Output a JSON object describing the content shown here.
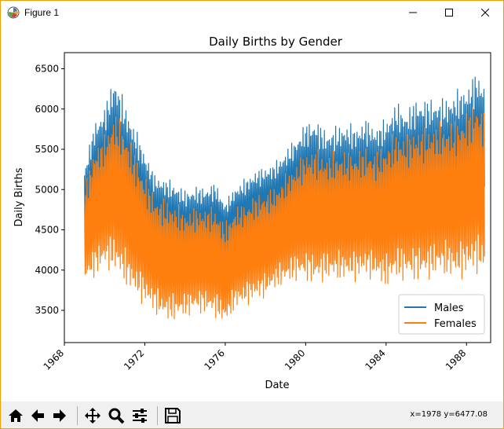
{
  "window": {
    "title": "Figure 1",
    "app_icon": "matplotlib-figure-icon",
    "controls": [
      "minimize-icon",
      "maximize-icon",
      "close-icon"
    ]
  },
  "chart_data": {
    "type": "line",
    "title": "Daily Births by Gender",
    "xlabel": "Date",
    "ylabel": "Daily Births",
    "x_ticks": [
      "1968",
      "1972",
      "1976",
      "1980",
      "1984",
      "1988"
    ],
    "y_ticks": [
      "3500",
      "4000",
      "4500",
      "5000",
      "5500",
      "6000",
      "6500"
    ],
    "xlim": [
      1968.0,
      1989.2
    ],
    "ylim": [
      3100,
      6700
    ],
    "grid": false,
    "legend_position": "bottom-right",
    "series": [
      {
        "name": "Males",
        "color": "#1f77b4",
        "x": [
          1969.0,
          1969.5,
          1970.0,
          1970.5,
          1971.0,
          1971.5,
          1972.0,
          1972.5,
          1973.0,
          1973.5,
          1974.0,
          1974.5,
          1975.0,
          1975.5,
          1976.0,
          1976.5,
          1977.0,
          1977.5,
          1978.0,
          1978.5,
          1979.0,
          1979.5,
          1980.0,
          1980.5,
          1981.0,
          1981.5,
          1982.0,
          1982.5,
          1983.0,
          1983.5,
          1984.0,
          1984.5,
          1985.0,
          1985.5,
          1986.0,
          1986.5,
          1987.0,
          1987.5,
          1988.0,
          1988.5,
          1988.9
        ],
        "upper": [
          5300,
          5850,
          6050,
          6450,
          6100,
          5800,
          5500,
          5200,
          5150,
          5100,
          5000,
          5050,
          5050,
          5100,
          4850,
          5050,
          5150,
          5250,
          5300,
          5350,
          5500,
          5650,
          5850,
          5900,
          5750,
          5800,
          5850,
          5800,
          5900,
          5800,
          5900,
          6100,
          6000,
          6150,
          6150,
          6150,
          6150,
          6250,
          6300,
          6500,
          6350
        ],
        "lower": [
          4300,
          4500,
          4600,
          4550,
          4450,
          4350,
          4200,
          4150,
          4100,
          4050,
          4050,
          4050,
          4050,
          4100,
          4100,
          4200,
          4200,
          4300,
          4300,
          4400,
          4450,
          4500,
          4450,
          4400,
          4400,
          4400,
          4400,
          4450,
          4450,
          4450,
          4450,
          4500,
          4500,
          4500,
          4500,
          4550,
          4550,
          4550,
          4600,
          4650,
          4650
        ]
      },
      {
        "name": "Females",
        "color": "#ff7f0e",
        "x": [
          1969.0,
          1969.5,
          1970.0,
          1970.5,
          1971.0,
          1971.5,
          1972.0,
          1972.5,
          1973.0,
          1973.5,
          1974.0,
          1974.5,
          1975.0,
          1975.5,
          1976.0,
          1976.5,
          1977.0,
          1977.5,
          1978.0,
          1978.5,
          1979.0,
          1979.5,
          1980.0,
          1980.5,
          1981.0,
          1981.5,
          1982.0,
          1982.5,
          1983.0,
          1983.5,
          1984.0,
          1984.5,
          1985.0,
          1985.5,
          1986.0,
          1986.5,
          1987.0,
          1987.5,
          1988.0,
          1988.5,
          1988.9
        ],
        "upper": [
          5050,
          5550,
          5700,
          6000,
          5800,
          5500,
          5200,
          4950,
          4900,
          4850,
          4750,
          4800,
          4800,
          4800,
          4600,
          4800,
          4850,
          4950,
          5000,
          5050,
          5200,
          5350,
          5500,
          5550,
          5450,
          5500,
          5500,
          5500,
          5550,
          5500,
          5600,
          5750,
          5700,
          5800,
          5800,
          5850,
          5850,
          5900,
          6000,
          6150,
          6000
        ],
        "lower": [
          3800,
          3900,
          4000,
          3950,
          3800,
          3650,
          3550,
          3450,
          3350,
          3350,
          3400,
          3450,
          3450,
          3400,
          3300,
          3500,
          3550,
          3600,
          3650,
          3750,
          3800,
          3850,
          3850,
          3800,
          3850,
          3850,
          3850,
          3850,
          3900,
          3850,
          3750,
          3850,
          3850,
          3850,
          3850,
          3900,
          3900,
          3850,
          3900,
          3950,
          3900
        ]
      }
    ]
  },
  "toolbar": {
    "buttons": [
      "home-icon",
      "back-icon",
      "forward-icon",
      "pan-icon",
      "zoom-icon",
      "configure-subplots-icon",
      "save-icon"
    ],
    "coord_readout": "x=1978 y=6477.08"
  }
}
